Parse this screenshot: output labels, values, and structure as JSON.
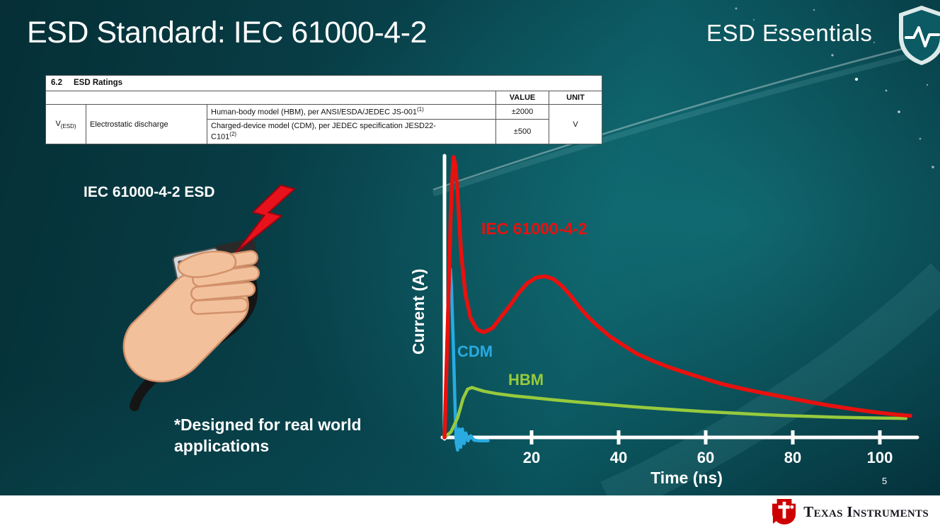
{
  "slide": {
    "title": "ESD Standard: IEC 61000-4-2",
    "series_brand": "ESD Essentials",
    "page_number": "5"
  },
  "ratings_table": {
    "section_number": "6.2",
    "section_title": "ESD Ratings",
    "columns": {
      "value": "VALUE",
      "unit": "UNIT"
    },
    "parameter": {
      "symbol": "V",
      "subscript": "(ESD)",
      "name": "Electrostatic discharge"
    },
    "rows": [
      {
        "description": "Human-body model (HBM), per ANSI/ESDA/JEDEC JS-001",
        "ref": "(1)",
        "value": "±2000"
      },
      {
        "description_line1": "Charged-device model (CDM), per JEDEC specification JESD22-",
        "description_line2": "C101",
        "ref": "(2)",
        "value": "±500"
      }
    ],
    "unit": "V"
  },
  "illustration": {
    "caption": "IEC 61000-4-2 ESD",
    "note_line1": "*Designed for real world",
    "note_line2": "applications"
  },
  "chart_data": {
    "type": "line",
    "title": "",
    "xlabel": "Time (ns)",
    "ylabel": "Current (A)",
    "x_ticks": [
      20,
      40,
      60,
      80,
      100
    ],
    "xlim": [
      0,
      110
    ],
    "y_axis_ticks": "none (unlabeled axis; values normalized, IEC 61000-4-2 peak = 1.0)",
    "grid": false,
    "legend": "inline labels beside curves",
    "series": [
      {
        "name": "CDM",
        "color": "#29abe2",
        "points": [
          [
            0,
            0
          ],
          [
            0.4,
            0.22
          ],
          [
            0.8,
            0.47
          ],
          [
            1.1,
            0.58
          ],
          [
            1.35,
            0.6
          ],
          [
            1.6,
            0.54
          ],
          [
            2,
            0.34
          ],
          [
            2.4,
            0.12
          ],
          [
            2.7,
            -0.02
          ],
          [
            3,
            -0.045
          ],
          [
            3.35,
            0.03
          ],
          [
            3.7,
            -0.035
          ],
          [
            4.1,
            0.03
          ],
          [
            4.5,
            -0.022
          ],
          [
            4.9,
            0.016
          ],
          [
            5.4,
            -0.012
          ],
          [
            6,
            0.006
          ],
          [
            6.8,
            -0.01
          ],
          [
            8,
            -0.012
          ],
          [
            10,
            -0.012
          ]
        ]
      },
      {
        "name": "HBM",
        "color": "#97ca3d",
        "points": [
          [
            0,
            0
          ],
          [
            1.5,
            0.02
          ],
          [
            3,
            0.07
          ],
          [
            4.3,
            0.14
          ],
          [
            5.3,
            0.172
          ],
          [
            6.3,
            0.178
          ],
          [
            7.5,
            0.172
          ],
          [
            9,
            0.165
          ],
          [
            12,
            0.156
          ],
          [
            16,
            0.148
          ],
          [
            20,
            0.142
          ],
          [
            25,
            0.134
          ],
          [
            30,
            0.127
          ],
          [
            36,
            0.119
          ],
          [
            42,
            0.111
          ],
          [
            48,
            0.104
          ],
          [
            54,
            0.098
          ],
          [
            60,
            0.092
          ],
          [
            66,
            0.087
          ],
          [
            72,
            0.082
          ],
          [
            78,
            0.078
          ],
          [
            84,
            0.075
          ],
          [
            90,
            0.072
          ],
          [
            96,
            0.07
          ],
          [
            101,
            0.069
          ],
          [
            106,
            0.068
          ]
        ]
      },
      {
        "name": "IEC 61000-4-2",
        "color": "#e8110e",
        "points": [
          [
            0,
            0
          ],
          [
            0.7,
            0.38
          ],
          [
            1.4,
            0.78
          ],
          [
            1.8,
            0.93
          ],
          [
            2.1,
            1
          ],
          [
            2.5,
            0.97
          ],
          [
            3,
            0.87
          ],
          [
            3.8,
            0.66
          ],
          [
            4.8,
            0.51
          ],
          [
            6,
            0.425
          ],
          [
            7.5,
            0.385
          ],
          [
            9,
            0.375
          ],
          [
            11,
            0.39
          ],
          [
            13,
            0.43
          ],
          [
            15,
            0.47
          ],
          [
            17,
            0.515
          ],
          [
            19,
            0.55
          ],
          [
            21,
            0.57
          ],
          [
            23,
            0.575
          ],
          [
            25,
            0.565
          ],
          [
            27,
            0.54
          ],
          [
            29,
            0.505
          ],
          [
            31,
            0.465
          ],
          [
            33,
            0.43
          ],
          [
            35,
            0.4
          ],
          [
            38,
            0.36
          ],
          [
            41,
            0.33
          ],
          [
            44,
            0.3
          ],
          [
            48,
            0.272
          ],
          [
            52,
            0.248
          ],
          [
            56,
            0.228
          ],
          [
            60,
            0.208
          ],
          [
            64,
            0.19
          ],
          [
            68,
            0.175
          ],
          [
            72,
            0.162
          ],
          [
            76,
            0.15
          ],
          [
            80,
            0.138
          ],
          [
            84,
            0.126
          ],
          [
            88,
            0.115
          ],
          [
            92,
            0.105
          ],
          [
            96,
            0.096
          ],
          [
            100,
            0.088
          ],
          [
            104,
            0.081
          ],
          [
            107,
            0.077
          ]
        ]
      }
    ]
  },
  "footer": {
    "brand": "Texas Instruments"
  }
}
